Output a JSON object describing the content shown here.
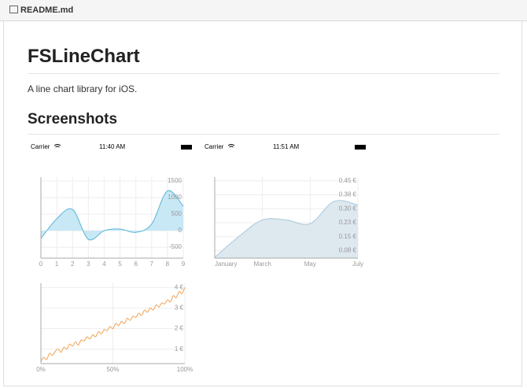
{
  "header": {
    "filename": "README.md"
  },
  "title": "FSLineChart",
  "description": "A line chart library for iOS.",
  "section_heading": "Screenshots",
  "screenshots": [
    {
      "status": {
        "carrier": "Carrier",
        "time": "11:40 AM"
      },
      "chart_data": {
        "type": "area",
        "color": "#5ab4d8",
        "fill": "#c8e8f5",
        "x": [
          0,
          1,
          2,
          3,
          4,
          5,
          6,
          7,
          8,
          9
        ],
        "values": [
          -240,
          360,
          640,
          -260,
          0,
          50,
          -50,
          200,
          1200,
          740
        ],
        "xlim": [
          0,
          9
        ],
        "xticks": [
          0,
          1,
          2,
          3,
          4,
          5,
          6,
          7,
          8,
          9
        ],
        "ylim": [
          -830,
          1620
        ],
        "yticks": [
          1500,
          1000,
          500,
          0,
          -500
        ],
        "grid": true
      }
    },
    {
      "status": {
        "carrier": "Carrier",
        "time": "11:51 AM"
      },
      "chart_data": {
        "type": "area",
        "color": "#a8c8dc",
        "fill": "#dde8ef",
        "categories": [
          "January",
          null,
          "March",
          null,
          "May",
          null,
          "July"
        ],
        "values": [
          0.04,
          0.15,
          0.24,
          0.24,
          0.22,
          0.34,
          0.32
        ],
        "ylim": [
          0.035,
          0.47
        ],
        "yticks": [
          {
            "value": 0.45,
            "label": "0.45 €"
          },
          {
            "value": 0.375,
            "label": "0.38 €"
          },
          {
            "value": 0.3,
            "label": "0.30 €"
          },
          {
            "value": 0.225,
            "label": "0.23 €"
          },
          {
            "value": 0.15,
            "label": "0.15 €"
          },
          {
            "value": 0.075,
            "label": "0.08 €"
          }
        ],
        "grid": true
      }
    },
    {
      "chart_data": {
        "type": "line",
        "color": "#f0a050",
        "x": [
          0,
          2,
          4,
          6,
          8,
          10,
          12,
          14,
          16,
          18,
          20,
          22,
          24,
          26,
          28,
          30,
          32,
          34,
          36,
          38,
          40,
          42,
          44,
          46,
          48,
          50,
          52,
          54,
          56,
          58,
          60,
          62,
          64,
          66,
          68,
          70,
          72,
          74,
          76,
          78,
          80,
          82,
          84,
          86,
          88,
          90,
          92,
          94,
          96,
          98,
          100
        ],
        "values": [
          0.4,
          0.6,
          0.5,
          0.8,
          0.7,
          0.9,
          1.0,
          0.85,
          1.1,
          1.0,
          1.25,
          1.15,
          1.35,
          1.2,
          1.45,
          1.4,
          1.6,
          1.5,
          1.7,
          1.6,
          1.85,
          1.75,
          1.95,
          1.9,
          2.1,
          2.0,
          2.25,
          2.15,
          2.35,
          2.25,
          2.5,
          2.4,
          2.6,
          2.55,
          2.75,
          2.65,
          2.9,
          2.8,
          3.0,
          2.9,
          3.15,
          3.05,
          3.25,
          3.2,
          3.4,
          3.3,
          3.6,
          3.5,
          3.8,
          3.7,
          4.0
        ],
        "xlim": [
          0,
          100
        ],
        "xticks": [
          {
            "value": 0,
            "label": "0%"
          },
          {
            "value": 50,
            "label": "50%"
          },
          {
            "value": 100,
            "label": "100%"
          }
        ],
        "ylim": [
          0.3,
          4.2
        ],
        "yticks": [
          {
            "value": 4,
            "label": "4 €"
          },
          {
            "value": 3,
            "label": "3 €"
          },
          {
            "value": 2,
            "label": "2 €"
          },
          {
            "value": 1,
            "label": "1 €"
          }
        ],
        "grid": true
      }
    }
  ]
}
